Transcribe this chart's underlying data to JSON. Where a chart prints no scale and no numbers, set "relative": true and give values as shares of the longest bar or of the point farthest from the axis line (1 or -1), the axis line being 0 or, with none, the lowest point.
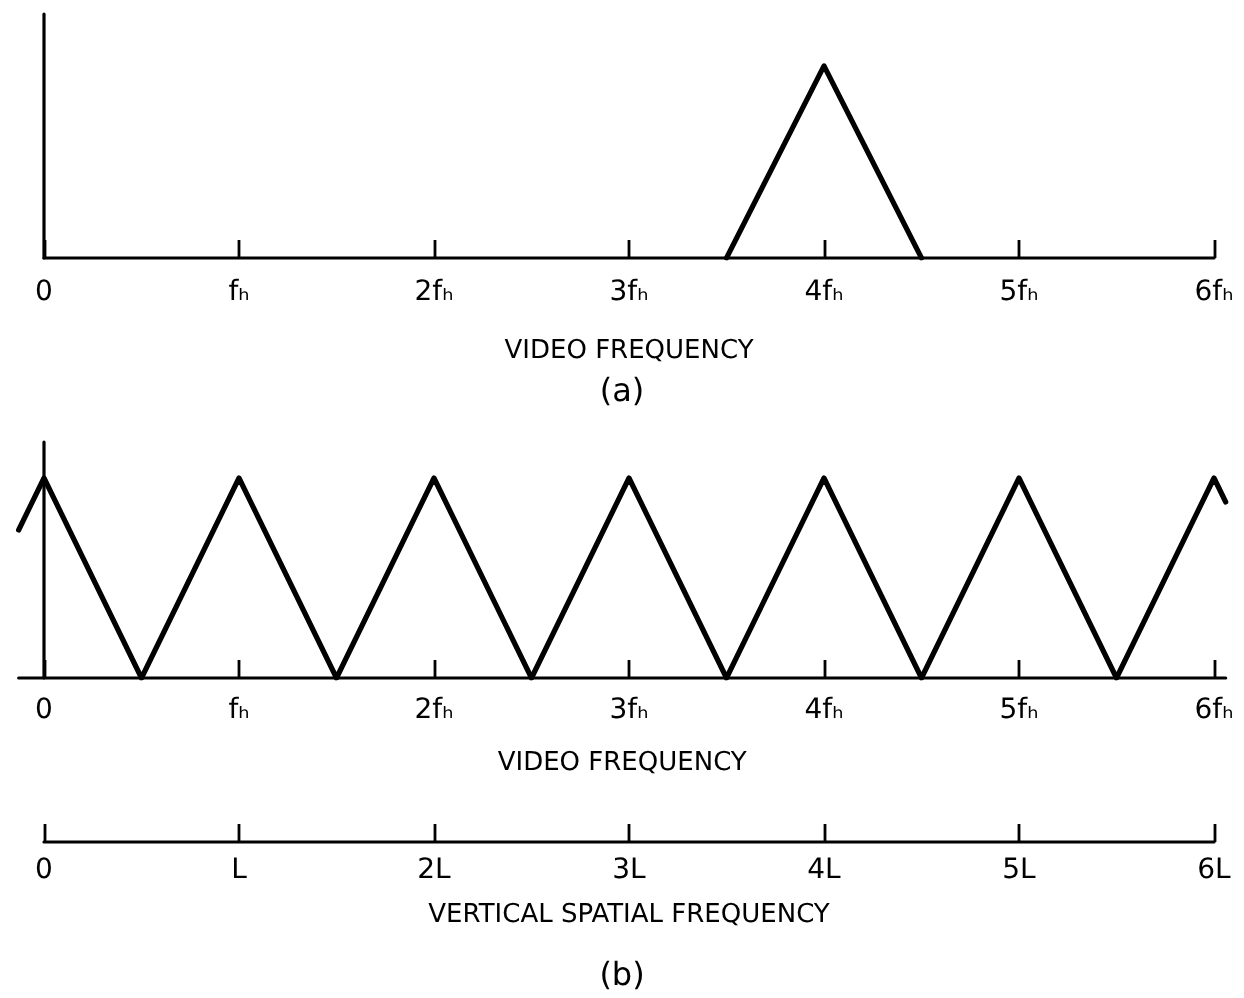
{
  "chart_data": [
    {
      "type": "line",
      "title": "(a)",
      "xlabel": "VIDEO FREQUENCY",
      "relative": true,
      "xlim": [
        0,
        6
      ],
      "xticks": [
        0,
        {
          "value": 1,
          "label": "fₕ"
        },
        {
          "value": 2,
          "label": "2fₕ"
        },
        {
          "value": 3,
          "label": "3fₕ"
        },
        {
          "value": 4,
          "label": "4fₕ"
        },
        {
          "value": 5,
          "label": "5fₕ"
        },
        {
          "value": 6,
          "label": "6fₕ"
        }
      ],
      "series": [
        {
          "color": "#000000",
          "x": [
            3.5,
            4,
            4.5
          ],
          "values": [
            0,
            1,
            0
          ]
        }
      ]
    },
    {
      "type": "line",
      "title": "(b)",
      "xlabel": "VIDEO FREQUENCY",
      "x2label": "VERTICAL SPATIAL FREQUENCY",
      "relative": true,
      "xlim": [
        -0.13,
        6.06
      ],
      "xticks": [
        0,
        {
          "value": 1,
          "label": "fₕ"
        },
        {
          "value": 2,
          "label": "2fₕ"
        },
        {
          "value": 3,
          "label": "3fₕ"
        },
        {
          "value": 4,
          "label": "4fₕ"
        },
        {
          "value": 5,
          "label": "5fₕ"
        },
        {
          "value": 6,
          "label": "6fₕ"
        }
      ],
      "x2lim": [
        0,
        6
      ],
      "x2ticks": [
        0,
        {
          "value": 1,
          "label": "L"
        },
        {
          "value": 2,
          "label": "2L"
        },
        {
          "value": 3,
          "label": "3L"
        },
        {
          "value": 4,
          "label": "4L"
        },
        {
          "value": 5,
          "label": "5L"
        },
        {
          "value": 6,
          "label": "6L"
        }
      ],
      "series": [
        {
          "color": "#000000",
          "x": [
            -0.13,
            0,
            0.5,
            1,
            1.5,
            2,
            2.5,
            3,
            3.5,
            4,
            4.5,
            5,
            5.5,
            6,
            6.06
          ],
          "values": [
            0.74,
            1,
            0,
            1,
            0,
            1,
            0,
            1,
            0,
            1,
            0,
            1,
            0,
            1,
            0.88
          ]
        }
      ]
    }
  ]
}
